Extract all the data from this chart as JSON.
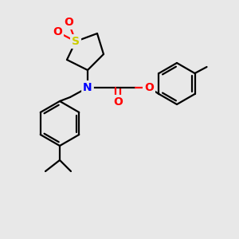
{
  "bg_color": "#e8e8e8",
  "bond_color": "#000000",
  "atom_colors": {
    "N": "#0000ff",
    "O": "#ff0000",
    "S": "#cccc00",
    "C": "#000000"
  },
  "figsize": [
    3.0,
    3.0
  ],
  "dpi": 100
}
